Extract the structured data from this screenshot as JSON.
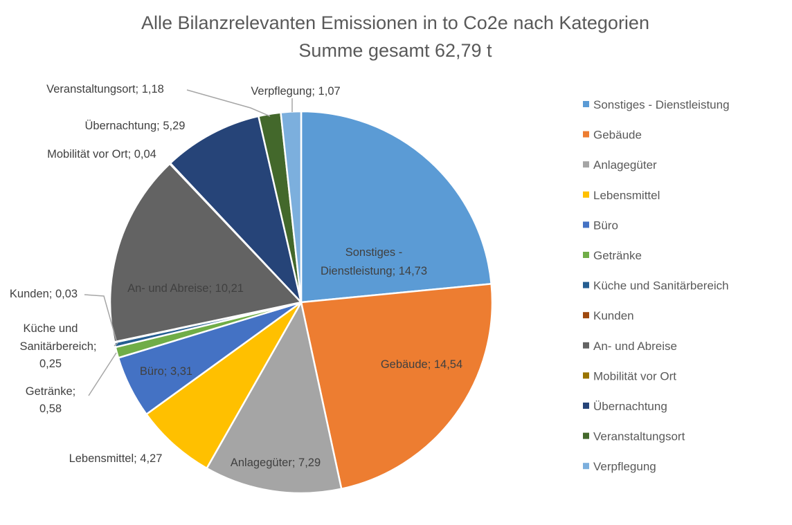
{
  "chart_data": {
    "type": "pie",
    "title": "Alle Bilanzrelevanten Emissionen in to Co2e nach Kategorien",
    "subtitle": "Summe gesamt 62,79 t",
    "legend_position": "right",
    "start_angle": "top, clockwise",
    "slices": [
      {
        "name": "Sonstiges - Dienstleistung",
        "value": 14.73,
        "label": "Sonstiges - Dienstleistung; 14,73",
        "color": "#5B9BD5"
      },
      {
        "name": "Gebäude",
        "value": 14.54,
        "label": "Gebäude; 14,54",
        "color": "#ED7D31"
      },
      {
        "name": "Anlagegüter",
        "value": 7.29,
        "label": "Anlagegüter; 7,29",
        "color": "#A5A5A5"
      },
      {
        "name": "Lebensmittel",
        "value": 4.27,
        "label": "Lebensmittel; 4,27",
        "color": "#FFC000"
      },
      {
        "name": "Büro",
        "value": 3.31,
        "label": "Büro; 3,31",
        "color": "#4472C4"
      },
      {
        "name": "Getränke",
        "value": 0.58,
        "label": "Getränke; 0,58",
        "color": "#70AD47"
      },
      {
        "name": "Küche und Sanitärbereich",
        "value": 0.25,
        "label": "Küche und Sanitärbereich; 0,25",
        "color": "#255E91"
      },
      {
        "name": "Kunden",
        "value": 0.03,
        "label": "Kunden; 0,03",
        "color": "#9E480E"
      },
      {
        "name": "An- und Abreise",
        "value": 10.21,
        "label": "An- und Abreise; 10,21",
        "color": "#636363"
      },
      {
        "name": "Mobilität vor Ort",
        "value": 0.04,
        "label": "Mobilität vor Ort; 0,04",
        "color": "#997300"
      },
      {
        "name": "Übernachtung",
        "value": 5.29,
        "label": "Übernachtung; 5,29",
        "color": "#264478"
      },
      {
        "name": "Veranstaltungsort",
        "value": 1.18,
        "label": "Veranstaltungsort; 1,18",
        "color": "#43682B"
      },
      {
        "name": "Verpflegung",
        "value": 1.07,
        "label": "Verpflegung; 1,07",
        "color": "#7CAFDD"
      }
    ]
  }
}
